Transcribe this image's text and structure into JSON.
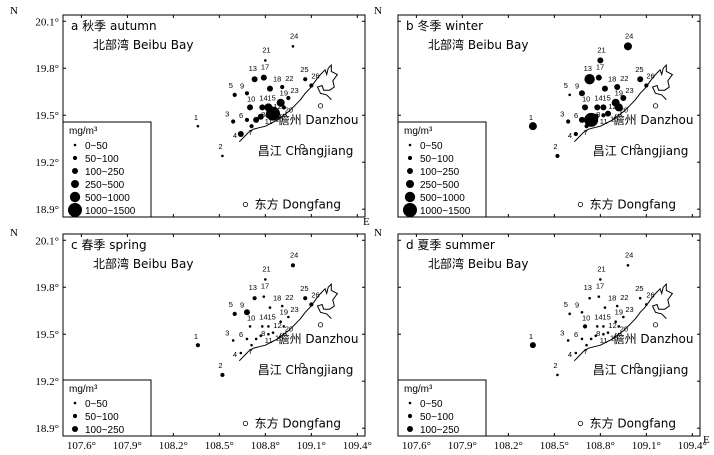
{
  "figure": {
    "axes": {
      "north": "N",
      "east": "E",
      "x_ticks": [
        "107.6°",
        "107.9°",
        "108.2°",
        "108.5°",
        "108.8°",
        "109.1°",
        "109.4°"
      ],
      "y_ticks": [
        "20.1°",
        "19.8°",
        "19.5°",
        "19.2°",
        "18.9°"
      ],
      "x_range": [
        107.48,
        109.45
      ],
      "y_range": [
        18.85,
        20.14
      ]
    },
    "places": {
      "bay": "北部湾 Beibu Bay",
      "danzhou": "儋州 Danzhou",
      "changjiang": "昌江 Changjiang",
      "dongfang": "东方 Dongfang"
    },
    "legend": {
      "unit": "mg/m³",
      "classes": [
        "0~50",
        "50~100",
        "100~250",
        "250~500",
        "500~1000",
        "1000~1500"
      ]
    },
    "colors": {
      "marker": "#000000",
      "frame": "#000000",
      "background": "#ffffff"
    },
    "panels": [
      {
        "id": "a",
        "title": "a 秋季 autumn",
        "legend_classes": 6,
        "values": [
          0,
          0,
          1,
          2,
          1,
          1,
          1,
          2,
          1,
          2,
          2,
          2,
          2,
          2,
          3,
          5,
          2,
          2,
          3,
          1,
          0,
          1,
          1,
          0,
          1,
          1
        ]
      },
      {
        "id": "b",
        "title": "b 冬季 winter",
        "legend_classes": 6,
        "values": [
          3,
          1,
          1,
          1,
          0,
          2,
          1,
          5,
          2,
          2,
          2,
          1,
          4,
          2,
          2,
          2,
          2,
          2,
          3,
          3,
          2,
          2,
          2,
          3,
          2,
          1
        ]
      },
      {
        "id": "c",
        "title": "c 春季 spring",
        "legend_classes": 3,
        "values": [
          1,
          1,
          0,
          0,
          1,
          0,
          0,
          0,
          2,
          0,
          0,
          0,
          1,
          0,
          0,
          0,
          0,
          0,
          0,
          0,
          0,
          0,
          0,
          1,
          1,
          1
        ]
      },
      {
        "id": "d",
        "title": "d 夏季 summer",
        "legend_classes": 3,
        "values": [
          2,
          0,
          0,
          0,
          0,
          0,
          0,
          0,
          0,
          1,
          0,
          0,
          0,
          0,
          0,
          0,
          0,
          0,
          0,
          0,
          0,
          0,
          0,
          0,
          0,
          0
        ]
      }
    ],
    "stations": [
      {
        "id": "1",
        "lon": 108.36,
        "lat": 19.43
      },
      {
        "id": "2",
        "lon": 108.52,
        "lat": 19.24
      },
      {
        "id": "3",
        "lon": 108.59,
        "lat": 19.46
      },
      {
        "id": "4",
        "lon": 108.64,
        "lat": 19.38
      },
      {
        "id": "5",
        "lon": 108.6,
        "lat": 19.63
      },
      {
        "id": "6",
        "lon": 108.68,
        "lat": 19.47
      },
      {
        "id": "7",
        "lon": 108.71,
        "lat": 19.43
      },
      {
        "id": "8",
        "lon": 108.74,
        "lat": 19.47
      },
      {
        "id": "9",
        "lon": 108.68,
        "lat": 19.64
      },
      {
        "id": "10",
        "lon": 108.7,
        "lat": 19.55
      },
      {
        "id": "11",
        "lon": 108.77,
        "lat": 19.49
      },
      {
        "id": "12",
        "lon": 108.82,
        "lat": 19.5
      },
      {
        "id": "13",
        "lon": 108.73,
        "lat": 19.73
      },
      {
        "id": "14",
        "lon": 108.78,
        "lat": 19.55
      },
      {
        "id": "15",
        "lon": 108.82,
        "lat": 19.55
      },
      {
        "id": "16",
        "lon": 108.85,
        "lat": 19.51
      },
      {
        "id": "17",
        "lon": 108.79,
        "lat": 19.74
      },
      {
        "id": "18",
        "lon": 108.83,
        "lat": 19.67
      },
      {
        "id": "19",
        "lon": 108.9,
        "lat": 19.58
      },
      {
        "id": "20",
        "lon": 108.92,
        "lat": 19.55
      },
      {
        "id": "21",
        "lon": 108.8,
        "lat": 19.85
      },
      {
        "id": "22",
        "lon": 108.91,
        "lat": 19.68
      },
      {
        "id": "23",
        "lon": 108.95,
        "lat": 19.61
      },
      {
        "id": "24",
        "lon": 108.98,
        "lat": 19.94
      },
      {
        "id": "25",
        "lon": 109.06,
        "lat": 19.73
      },
      {
        "id": "26",
        "lon": 109.1,
        "lat": 19.69
      }
    ],
    "coast": [
      [
        108.63,
        19.33
      ],
      [
        108.66,
        19.36
      ],
      [
        108.69,
        19.39
      ],
      [
        108.72,
        19.41
      ],
      [
        108.76,
        19.42
      ],
      [
        108.8,
        19.43
      ],
      [
        108.84,
        19.45
      ],
      [
        108.88,
        19.47
      ],
      [
        108.92,
        19.5
      ],
      [
        108.96,
        19.53
      ],
      [
        109.0,
        19.57
      ],
      [
        109.03,
        19.6
      ],
      [
        109.06,
        19.64
      ],
      [
        109.09,
        19.67
      ],
      [
        109.12,
        19.71
      ],
      [
        109.15,
        19.75
      ],
      [
        109.19,
        19.79
      ],
      [
        109.2,
        19.76
      ],
      [
        109.21,
        19.8
      ],
      [
        109.23,
        19.82
      ],
      [
        109.23,
        19.78
      ],
      [
        109.27,
        19.76
      ],
      [
        109.24,
        19.72
      ],
      [
        109.25,
        19.68
      ],
      [
        109.22,
        19.66
      ],
      [
        109.18,
        19.66
      ],
      [
        109.17,
        19.69
      ],
      [
        109.14,
        19.68
      ],
      [
        109.16,
        19.64
      ],
      [
        109.2,
        19.63
      ],
      [
        109.23,
        19.6
      ]
    ]
  }
}
